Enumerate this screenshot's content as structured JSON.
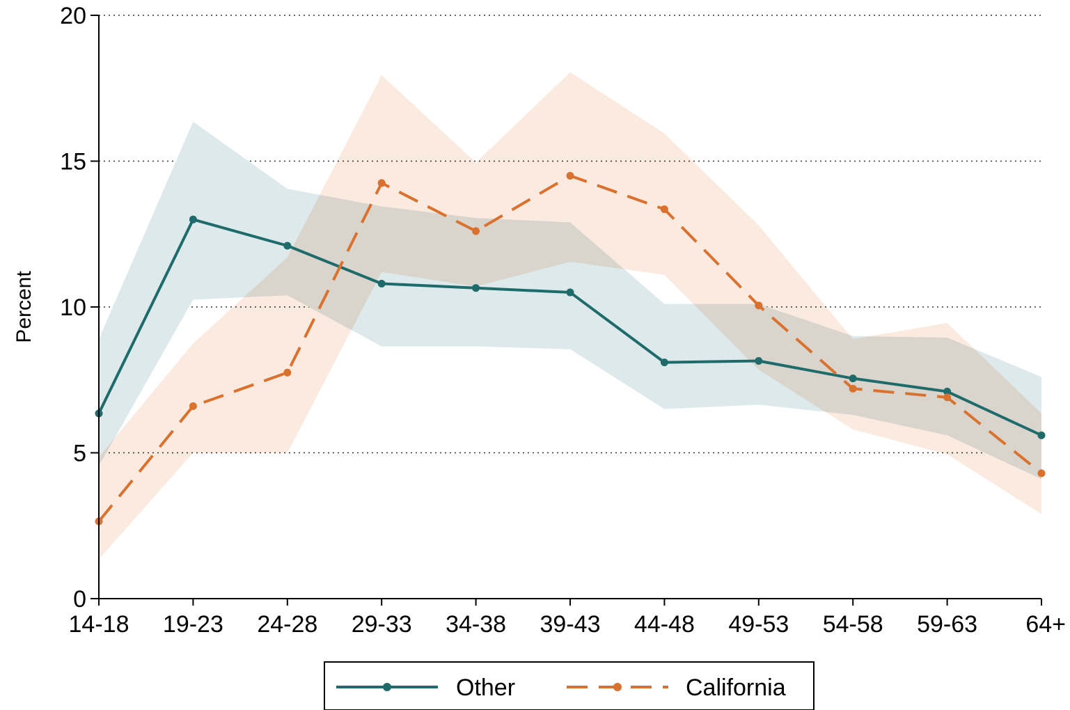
{
  "chart_data": {
    "type": "line",
    "title": "",
    "xlabel": "",
    "ylabel": "Percent",
    "categories": [
      "14-18",
      "19-23",
      "24-28",
      "29-33",
      "34-38",
      "39-43",
      "44-48",
      "49-53",
      "54-58",
      "59-63",
      "64+"
    ],
    "ylim": [
      0,
      20
    ],
    "yticks": [
      "0",
      "5",
      "10",
      "15",
      "20"
    ],
    "grid": "horizontal dotted",
    "legend_position": "bottom",
    "series": [
      {
        "name": "Other",
        "color": "#1f6b6b",
        "band_color": "#dde9ea",
        "line_style": "solid",
        "values": [
          6.35,
          13.0,
          12.1,
          10.8,
          10.65,
          10.5,
          8.1,
          8.15,
          7.55,
          7.1,
          5.6
        ],
        "ci_low": [
          4.55,
          10.25,
          10.4,
          8.65,
          8.65,
          8.55,
          6.5,
          6.65,
          6.3,
          5.6,
          4.1
        ],
        "ci_high": [
          8.9,
          16.35,
          14.05,
          13.45,
          13.05,
          12.9,
          10.1,
          10.1,
          9.0,
          8.95,
          7.6
        ]
      },
      {
        "name": "California",
        "color": "#d9712f",
        "band_color": "#fae3d5",
        "line_style": "dashed",
        "values": [
          2.65,
          6.6,
          7.75,
          14.25,
          12.6,
          14.5,
          13.35,
          10.05,
          7.2,
          6.9,
          4.3
        ],
        "ci_low": [
          1.35,
          5.0,
          5.0,
          11.2,
          10.7,
          11.55,
          11.1,
          7.85,
          5.8,
          4.95,
          2.9
        ],
        "ci_high": [
          4.85,
          8.75,
          11.7,
          17.95,
          14.95,
          18.05,
          15.95,
          12.8,
          8.9,
          9.45,
          6.35
        ]
      }
    ]
  }
}
